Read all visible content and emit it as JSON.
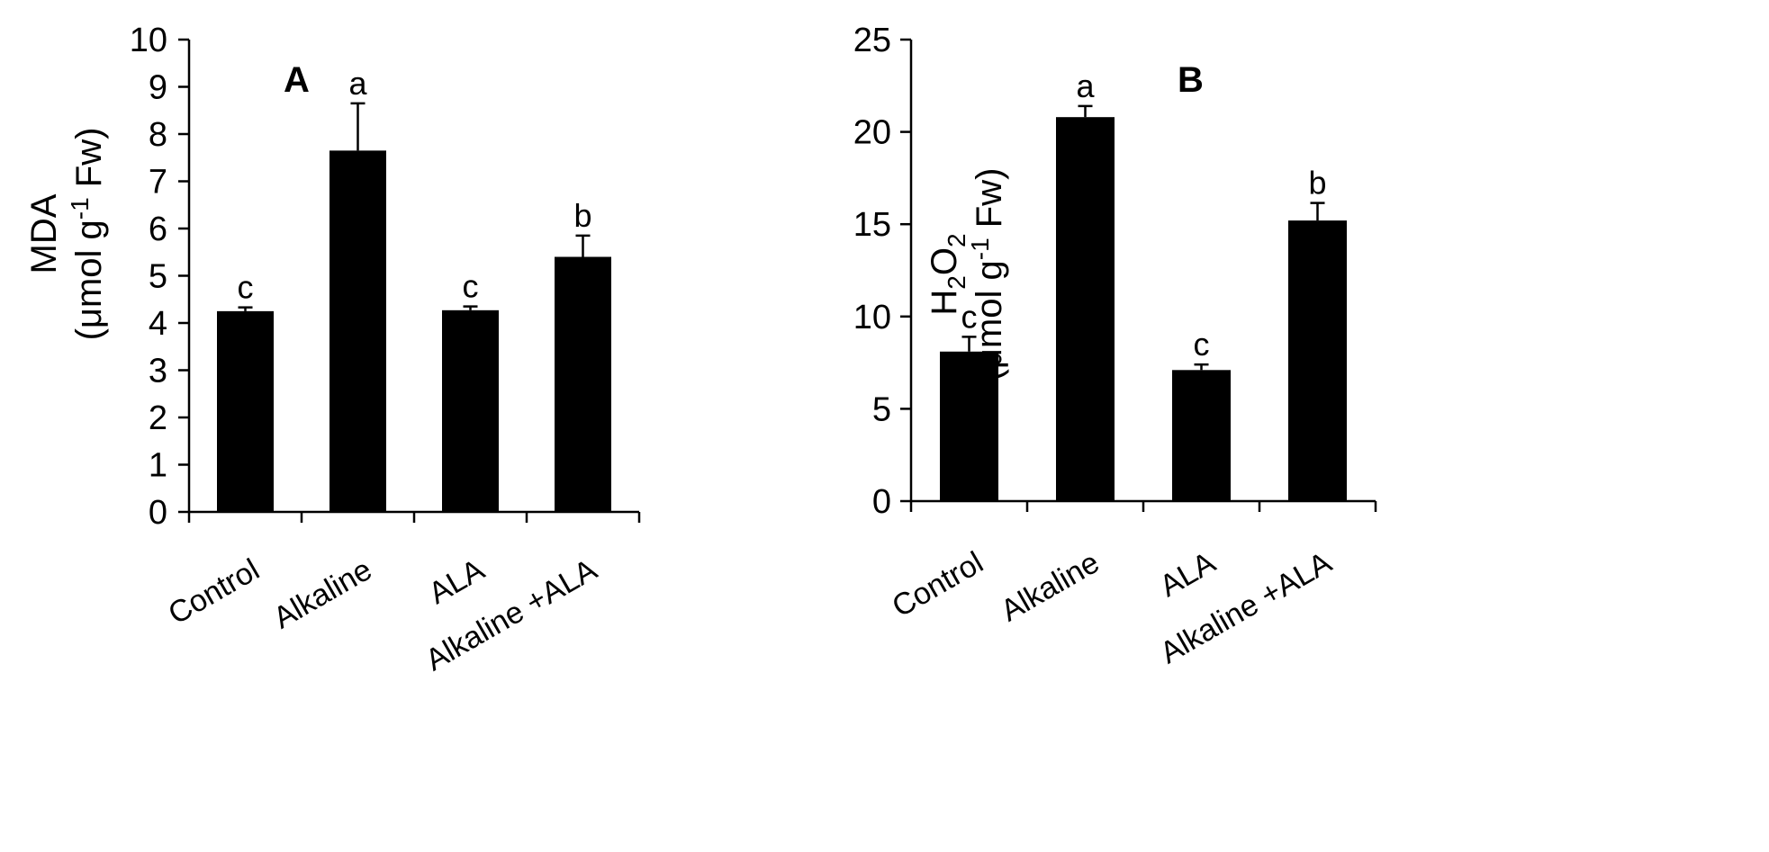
{
  "chart_data": [
    {
      "type": "bar",
      "panel_label": "A",
      "ylabel": {
        "line1": "MDA",
        "line2_pre": "(μmol g",
        "line2_sup": "-1",
        "line2_post": " Fw)"
      },
      "categories": [
        "Control",
        "Alkaline",
        "ALA",
        "Alkaline +ALA"
      ],
      "values": [
        4.25,
        7.65,
        4.27,
        5.4
      ],
      "errors": [
        0.08,
        1.0,
        0.08,
        0.45
      ],
      "significance": [
        "c",
        "a",
        "c",
        "b"
      ],
      "ylim": [
        0,
        10
      ],
      "yticks": [
        "0",
        "1",
        "2",
        "3",
        "4",
        "5",
        "6",
        "7",
        "8",
        "9",
        "10"
      ],
      "bar_color": "#000000"
    },
    {
      "type": "bar",
      "panel_label": "B",
      "ylabel": {
        "line1_pre": "H",
        "line1_sub1": "2",
        "line1_mid": "O",
        "line1_sub2": "2",
        "line2_pre": "(μmol g",
        "line2_sup": "-1",
        "line2_post": " Fw)"
      },
      "categories": [
        "Control",
        "Alkaline",
        "ALA",
        "Alkaline +ALA"
      ],
      "values": [
        8.1,
        20.8,
        7.1,
        15.2
      ],
      "errors": [
        0.8,
        0.6,
        0.3,
        0.95
      ],
      "significance": [
        "c",
        "a",
        "c",
        "b"
      ],
      "ylim": [
        0,
        25
      ],
      "yticks": [
        "0",
        "5",
        "10",
        "15",
        "20",
        "25"
      ],
      "bar_color": "#000000"
    }
  ]
}
